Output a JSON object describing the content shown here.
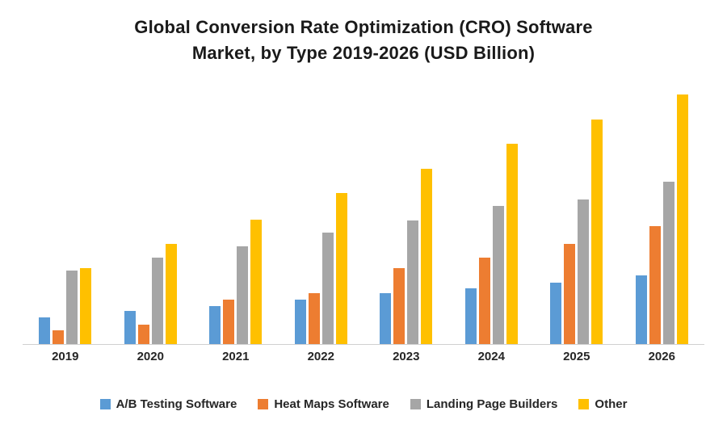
{
  "title": {
    "line1": "Global Conversion Rate Optimization (CRO) Software",
    "line2": "Market, by Type 2019-2026 (USD Billion)"
  },
  "chart_data": {
    "type": "bar",
    "title": "Global Conversion Rate Optimization (CRO) Software Market, by Type 2019-2026 (USD Billion)",
    "categories": [
      "2019",
      "2020",
      "2021",
      "2022",
      "2023",
      "2024",
      "2025",
      "2026"
    ],
    "series": [
      {
        "name": "A/B Testing Software",
        "color": "#5B9BD5",
        "values": [
          0.3,
          0.37,
          0.43,
          0.5,
          0.57,
          0.63,
          0.69,
          0.77
        ]
      },
      {
        "name": "Heat Maps Software",
        "color": "#ED7D31",
        "values": [
          0.15,
          0.22,
          0.5,
          0.57,
          0.85,
          0.97,
          1.13,
          1.33
        ]
      },
      {
        "name": "Landing Page Builders",
        "color": "#A6A6A6",
        "values": [
          0.83,
          0.97,
          1.1,
          1.25,
          1.39,
          1.55,
          1.63,
          1.83
        ]
      },
      {
        "name": "Other",
        "color": "#FFC000",
        "values": [
          0.85,
          1.13,
          1.4,
          1.7,
          1.97,
          2.25,
          2.53,
          2.81
        ]
      }
    ],
    "xlabel": "",
    "ylabel": "",
    "ylim": [
      0,
      3
    ],
    "grid": false,
    "y_axis_labels_visible": false,
    "legend_position": "bottom"
  }
}
